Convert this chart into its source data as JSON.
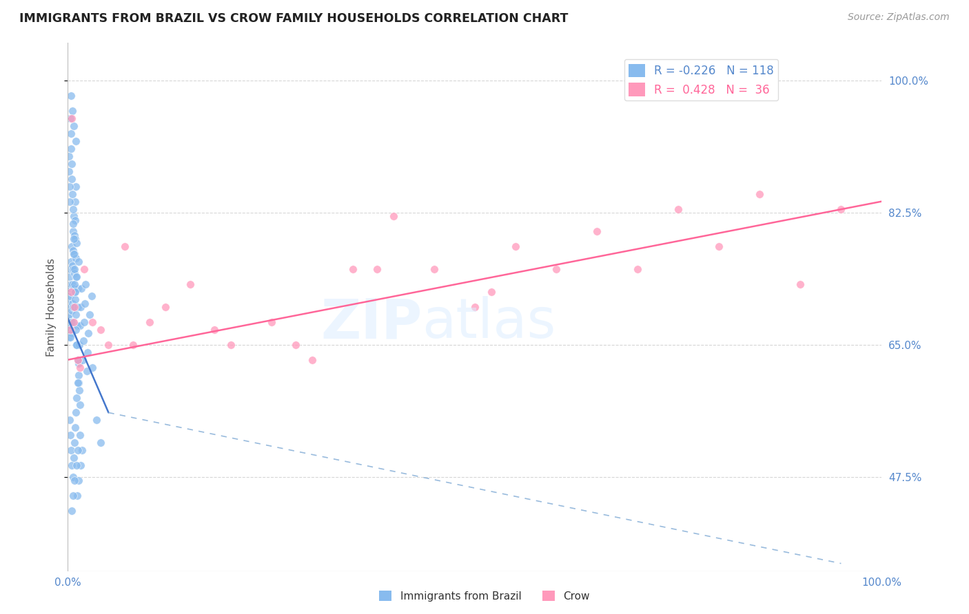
{
  "title": "IMMIGRANTS FROM BRAZIL VS CROW FAMILY HOUSEHOLDS CORRELATION CHART",
  "source_text": "Source: ZipAtlas.com",
  "ylabel": "Family Households",
  "xlim": [
    0.0,
    100.0
  ],
  "ylim": [
    35.0,
    105.0
  ],
  "yticks": [
    47.5,
    65.0,
    82.5,
    100.0
  ],
  "legend_blue_r": "R = -0.226",
  "legend_blue_n": "N = 118",
  "legend_pink_r": "R =  0.428",
  "legend_pink_n": "N =  36",
  "blue_marker_color": "#88BBEE",
  "pink_marker_color": "#FF99BB",
  "grid_color": "#CCCCCC",
  "axis_color": "#AAAAAA",
  "text_color": "#5588CC",
  "blue_scatter_x": [
    0.05,
    0.08,
    0.1,
    0.12,
    0.15,
    0.18,
    0.2,
    0.22,
    0.25,
    0.28,
    0.3,
    0.32,
    0.35,
    0.38,
    0.4,
    0.42,
    0.45,
    0.48,
    0.5,
    0.52,
    0.55,
    0.58,
    0.6,
    0.62,
    0.65,
    0.68,
    0.7,
    0.72,
    0.75,
    0.78,
    0.8,
    0.82,
    0.85,
    0.88,
    0.9,
    0.92,
    0.95,
    0.98,
    1.0,
    1.05,
    1.1,
    1.15,
    1.2,
    1.25,
    1.3,
    1.35,
    1.4,
    1.5,
    1.6,
    1.7,
    1.8,
    1.9,
    2.0,
    2.1,
    2.2,
    2.3,
    2.4,
    2.5,
    2.7,
    2.9,
    0.1,
    0.15,
    0.2,
    0.25,
    0.3,
    0.35,
    0.4,
    0.45,
    0.5,
    0.55,
    0.6,
    0.65,
    0.7,
    0.75,
    0.8,
    0.85,
    0.9,
    0.95,
    1.0,
    1.1,
    1.2,
    1.3,
    1.4,
    1.5,
    0.2,
    0.3,
    0.4,
    0.5,
    0.6,
    0.7,
    0.8,
    0.9,
    1.0,
    1.1,
    1.2,
    3.0,
    3.5,
    4.0,
    0.35,
    0.55,
    0.75,
    0.95,
    1.15,
    1.35,
    1.55,
    1.75,
    0.45,
    0.65,
    0.85,
    1.05,
    1.25,
    1.45,
    0.28,
    0.48,
    0.68,
    0.88,
    1.08,
    1.28
  ],
  "blue_scatter_y": [
    68.5,
    71.0,
    69.0,
    66.0,
    72.0,
    70.0,
    67.0,
    74.0,
    71.5,
    68.0,
    75.0,
    72.5,
    70.0,
    67.5,
    73.0,
    76.0,
    69.5,
    66.5,
    78.0,
    75.5,
    73.0,
    70.5,
    68.0,
    80.0,
    77.5,
    75.0,
    72.5,
    70.0,
    82.0,
    79.5,
    77.0,
    74.5,
    72.0,
    84.0,
    81.5,
    79.0,
    76.5,
    74.0,
    86.0,
    78.5,
    65.0,
    67.5,
    70.0,
    72.5,
    60.0,
    62.5,
    65.0,
    67.5,
    70.0,
    72.5,
    63.0,
    65.5,
    68.0,
    70.5,
    73.0,
    61.5,
    64.0,
    66.5,
    69.0,
    71.5,
    90.0,
    88.0,
    86.0,
    84.0,
    95.0,
    93.0,
    91.0,
    89.0,
    87.0,
    85.0,
    83.0,
    81.0,
    79.0,
    77.0,
    75.0,
    73.0,
    71.0,
    69.0,
    67.0,
    65.0,
    63.0,
    61.0,
    59.0,
    57.0,
    55.0,
    53.0,
    51.0,
    49.0,
    47.5,
    50.0,
    52.0,
    54.0,
    56.0,
    58.0,
    60.0,
    62.0,
    55.0,
    52.0,
    98.0,
    96.0,
    94.0,
    92.0,
    45.0,
    47.0,
    49.0,
    51.0,
    43.0,
    45.0,
    47.0,
    49.0,
    51.0,
    53.0,
    66.0,
    68.0,
    70.0,
    72.0,
    74.0,
    76.0
  ],
  "pink_scatter_x": [
    0.3,
    0.5,
    0.8,
    1.2,
    2.0,
    3.0,
    5.0,
    7.0,
    10.0,
    15.0,
    20.0,
    25.0,
    30.0,
    35.0,
    40.0,
    45.0,
    50.0,
    55.0,
    60.0,
    65.0,
    70.0,
    75.0,
    80.0,
    85.0,
    90.0,
    95.0,
    0.4,
    0.7,
    1.5,
    4.0,
    8.0,
    12.0,
    18.0,
    28.0,
    38.0,
    52.0
  ],
  "pink_scatter_y": [
    67.0,
    95.0,
    70.0,
    63.0,
    75.0,
    68.0,
    65.0,
    78.0,
    68.0,
    73.0,
    65.0,
    68.0,
    63.0,
    75.0,
    82.0,
    75.0,
    70.0,
    78.0,
    75.0,
    80.0,
    75.0,
    83.0,
    78.0,
    85.0,
    73.0,
    83.0,
    72.0,
    68.0,
    62.0,
    67.0,
    65.0,
    70.0,
    67.0,
    65.0,
    75.0,
    72.0
  ],
  "blue_trend_x0": 0.0,
  "blue_trend_y0": 68.5,
  "blue_trend_x1": 5.0,
  "blue_trend_y1": 56.0,
  "blue_dash_x0": 5.0,
  "blue_dash_y0": 56.0,
  "blue_dash_x1": 95.0,
  "blue_dash_y1": 36.0,
  "pink_trend_x0": 0.0,
  "pink_trend_y0": 63.0,
  "pink_trend_x1": 100.0,
  "pink_trend_y1": 84.0
}
